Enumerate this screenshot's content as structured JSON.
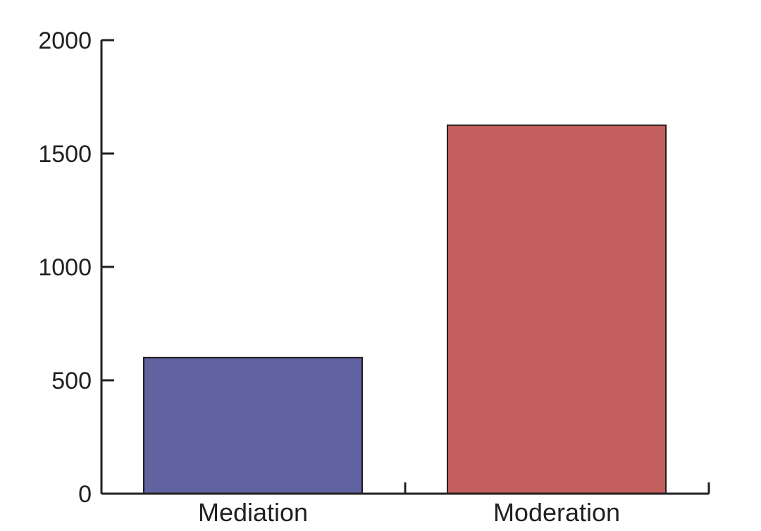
{
  "chart_data": {
    "type": "bar",
    "title": "",
    "xlabel": "",
    "ylabel": "",
    "categories": [
      "Mediation",
      "Moderation"
    ],
    "values": [
      600,
      1625
    ],
    "ylim": [
      0,
      2000
    ],
    "yticks": [
      "0",
      "500",
      "1000",
      "1500",
      "2000"
    ],
    "ytick_values": [
      0,
      500,
      1000,
      1500,
      2000
    ],
    "colors": [
      "#6063a0",
      "#c25e5b"
    ],
    "axis_color": "#231f20",
    "grid": false,
    "legend": "none"
  }
}
